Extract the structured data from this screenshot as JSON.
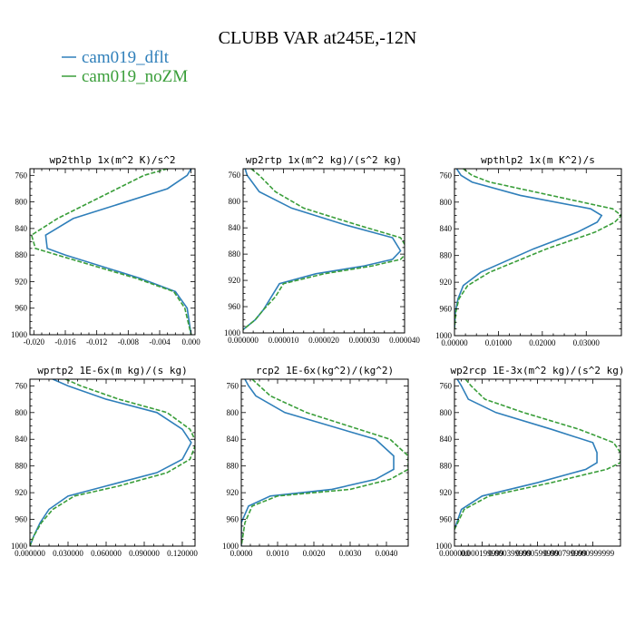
{
  "title": "CLUBB VAR at245E,-12N",
  "legend": [
    {
      "name": "cam019_dflt",
      "color": "#2f7fba",
      "dash": "solid"
    },
    {
      "name": "cam019_noZM",
      "color": "#3a9e3a",
      "dash": "dashed"
    }
  ],
  "chart_data": [
    {
      "type": "line",
      "title": "wp2thlp  1x(m^2 K)/s^2",
      "xlim": [
        -0.0205,
        0.0005
      ],
      "ylim": [
        1000,
        750
      ],
      "xticks": [
        -0.02,
        -0.016,
        -0.012,
        -0.008,
        -0.004,
        0.0
      ],
      "xtick_labels": [
        "-0.020",
        "-0.016",
        "-0.012",
        "-0.008",
        "-0.004",
        "0.000"
      ],
      "yticks": [
        760,
        800,
        840,
        880,
        920,
        960,
        1000
      ],
      "ytick_labels": [
        "760",
        "800",
        "840",
        "880",
        "920",
        "960",
        "1000"
      ],
      "series": [
        {
          "name": "cam019_dflt",
          "x": [
            0.0,
            -0.0005,
            -0.003,
            -0.015,
            -0.0185,
            -0.0183,
            -0.016,
            -0.0065,
            -0.002,
            -0.0005,
            0.0
          ],
          "y": [
            750,
            760,
            780,
            825,
            850,
            870,
            880,
            915,
            935,
            960,
            1000
          ]
        },
        {
          "name": "cam019_noZM",
          "x": [
            -0.003,
            -0.006,
            -0.017,
            -0.0203,
            -0.0198,
            -0.017,
            -0.007,
            -0.0022,
            -0.0008,
            0.0
          ],
          "y": [
            750,
            760,
            825,
            850,
            870,
            880,
            915,
            935,
            960,
            1000
          ]
        }
      ]
    },
    {
      "type": "line",
      "title": "wp2rtp  1x(m^2 kg)/(s^2 kg)",
      "xlim": [
        0.0,
        4e-05
      ],
      "ylim": [
        1000,
        750
      ],
      "xticks": [
        0.0,
        1e-05,
        2e-05,
        3e-05,
        4e-05
      ],
      "xtick_labels": [
        "0.000000",
        "0.000010",
        "0.000020",
        "0.000030",
        "0.000040"
      ],
      "yticks": [
        760,
        800,
        840,
        880,
        920,
        960,
        1000
      ],
      "ytick_labels": [
        "760",
        "800",
        "840",
        "880",
        "920",
        "960",
        "1000"
      ],
      "series": [
        {
          "name": "cam019_dflt",
          "x": [
            5e-07,
            1e-06,
            4e-06,
            1.2e-05,
            2.5e-05,
            3.7e-05,
            3.9e-05,
            3.7e-05,
            3e-05,
            1.8e-05,
            9e-06,
            7e-06,
            5e-06,
            3e-06,
            0.0
          ],
          "y": [
            750,
            760,
            785,
            810,
            835,
            855,
            875,
            888,
            898,
            910,
            925,
            945,
            965,
            980,
            995
          ]
        },
        {
          "name": "cam019_noZM",
          "x": [
            2e-06,
            4e-06,
            8e-06,
            1.5e-05,
            2.8e-05,
            3.9e-05,
            4.1e-05,
            3.9e-05,
            3.2e-05,
            2e-05,
            1e-05,
            8e-06,
            5e-06,
            3e-06,
            0.0
          ],
          "y": [
            750,
            760,
            785,
            810,
            835,
            855,
            875,
            888,
            898,
            910,
            925,
            945,
            965,
            980,
            995
          ]
        }
      ]
    },
    {
      "type": "line",
      "title": "wpthlp2  1x(m K^2)/s",
      "xlim": [
        0.0,
        0.038
      ],
      "ylim": [
        1000,
        750
      ],
      "xticks": [
        0.0,
        0.01,
        0.02,
        0.03
      ],
      "xtick_labels": [
        "0.00000",
        "0.01000",
        "0.02000",
        "0.03000"
      ],
      "yticks": [
        760,
        800,
        840,
        880,
        920,
        960,
        1000
      ],
      "ytick_labels": [
        "760",
        "800",
        "840",
        "880",
        "920",
        "960",
        "1000"
      ],
      "series": [
        {
          "name": "cam019_dflt",
          "x": [
            0.0005,
            0.0015,
            0.004,
            0.015,
            0.031,
            0.0335,
            0.0325,
            0.028,
            0.018,
            0.006,
            0.002,
            0.0008,
            0.0002,
            0.0
          ],
          "y": [
            750,
            760,
            770,
            790,
            810,
            820,
            830,
            845,
            870,
            905,
            925,
            945,
            965,
            990
          ]
        },
        {
          "name": "cam019_noZM",
          "x": [
            0.002,
            0.004,
            0.008,
            0.022,
            0.036,
            0.038,
            0.0365,
            0.032,
            0.021,
            0.008,
            0.003,
            0.001,
            0.0003,
            0.0
          ],
          "y": [
            750,
            760,
            770,
            790,
            810,
            820,
            830,
            845,
            870,
            905,
            925,
            945,
            965,
            990
          ]
        }
      ]
    },
    {
      "type": "line",
      "title": "wprtp2  1E-6x(m kg)/(s kg)",
      "xlim": [
        0.0,
        0.13
      ],
      "ylim": [
        1000,
        750
      ],
      "xticks": [
        0.0,
        0.03,
        0.06,
        0.09,
        0.12
      ],
      "xtick_labels": [
        "0.000000",
        "0.030000",
        "0.060000",
        "0.090000",
        "0.120000"
      ],
      "yticks": [
        760,
        800,
        840,
        880,
        920,
        960,
        1000
      ],
      "ytick_labels": [
        "760",
        "800",
        "840",
        "880",
        "920",
        "960",
        "1000"
      ],
      "series": [
        {
          "name": "cam019_dflt",
          "x": [
            0.018,
            0.03,
            0.06,
            0.1,
            0.12,
            0.127,
            0.12,
            0.1,
            0.06,
            0.03,
            0.015,
            0.008,
            0.003,
            0.0
          ],
          "y": [
            750,
            760,
            780,
            800,
            825,
            845,
            870,
            890,
            910,
            925,
            945,
            965,
            985,
            1000
          ]
        },
        {
          "name": "cam019_noZM",
          "x": [
            0.028,
            0.04,
            0.07,
            0.108,
            0.126,
            0.131,
            0.126,
            0.108,
            0.07,
            0.035,
            0.018,
            0.009,
            0.003,
            0.0
          ],
          "y": [
            750,
            760,
            780,
            800,
            825,
            845,
            870,
            890,
            910,
            925,
            945,
            965,
            985,
            1000
          ]
        }
      ]
    },
    {
      "type": "line",
      "title": "rcp2  1E-6x(kg^2)/(kg^2)",
      "xlim": [
        0.0,
        0.0046
      ],
      "ylim": [
        1000,
        750
      ],
      "xticks": [
        0.0,
        0.001,
        0.002,
        0.003,
        0.004
      ],
      "xtick_labels": [
        "0.0000",
        "0.0010",
        "0.0020",
        "0.0030",
        "0.0040"
      ],
      "yticks": [
        760,
        800,
        840,
        880,
        920,
        960,
        1000
      ],
      "ytick_labels": [
        "760",
        "800",
        "840",
        "880",
        "920",
        "960",
        "1000"
      ],
      "series": [
        {
          "name": "cam019_dflt",
          "x": [
            0.0001,
            0.0002,
            0.0004,
            0.0012,
            0.0037,
            0.0042,
            0.0042,
            0.0037,
            0.0025,
            0.0008,
            0.0002,
            0.0,
            0.0
          ],
          "y": [
            750,
            760,
            775,
            800,
            840,
            865,
            885,
            900,
            915,
            925,
            940,
            965,
            1000
          ]
        },
        {
          "name": "cam019_noZM",
          "x": [
            0.0003,
            0.0005,
            0.0008,
            0.0018,
            0.0041,
            0.0046,
            0.0046,
            0.0041,
            0.003,
            0.001,
            0.0003,
            0.0001,
            0.0
          ],
          "y": [
            750,
            760,
            775,
            800,
            840,
            865,
            885,
            900,
            915,
            925,
            940,
            965,
            1000
          ]
        }
      ]
    },
    {
      "type": "line",
      "title": "wp2rcp  1E-3x(m^2 kg)/(s^2 kg)",
      "xlim": [
        0.0,
        0.0012
      ],
      "ylim": [
        1000,
        750
      ],
      "xticks": [
        0.0,
        0.0002,
        0.0004,
        0.0006,
        0.0008,
        0.001
      ],
      "xtick_labels": [
        "0.000000",
        "0.000199999",
        "0.000399999",
        "0.000599999",
        "0.000799999",
        "0.000999999"
      ],
      "yticks": [
        760,
        800,
        840,
        880,
        920,
        960,
        1000
      ],
      "ytick_labels": [
        "760",
        "800",
        "840",
        "880",
        "920",
        "960",
        "1000"
      ],
      "series": [
        {
          "name": "cam019_dflt",
          "x": [
            2e-05,
            5e-05,
            0.0001,
            0.0003,
            0.0007,
            0.001,
            0.00103,
            0.00103,
            0.00095,
            0.0006,
            0.0002,
            5e-05,
            0.0
          ],
          "y": [
            750,
            760,
            780,
            800,
            825,
            845,
            860,
            875,
            885,
            905,
            925,
            945,
            975
          ]
        },
        {
          "name": "cam019_noZM",
          "x": [
            8e-05,
            0.00012,
            0.00022,
            0.0005,
            0.0009,
            0.00115,
            0.0012,
            0.0012,
            0.0011,
            0.0007,
            0.00025,
            7e-05,
            0.0
          ],
          "y": [
            750,
            760,
            780,
            800,
            825,
            845,
            860,
            875,
            885,
            905,
            925,
            945,
            975
          ]
        }
      ]
    }
  ]
}
